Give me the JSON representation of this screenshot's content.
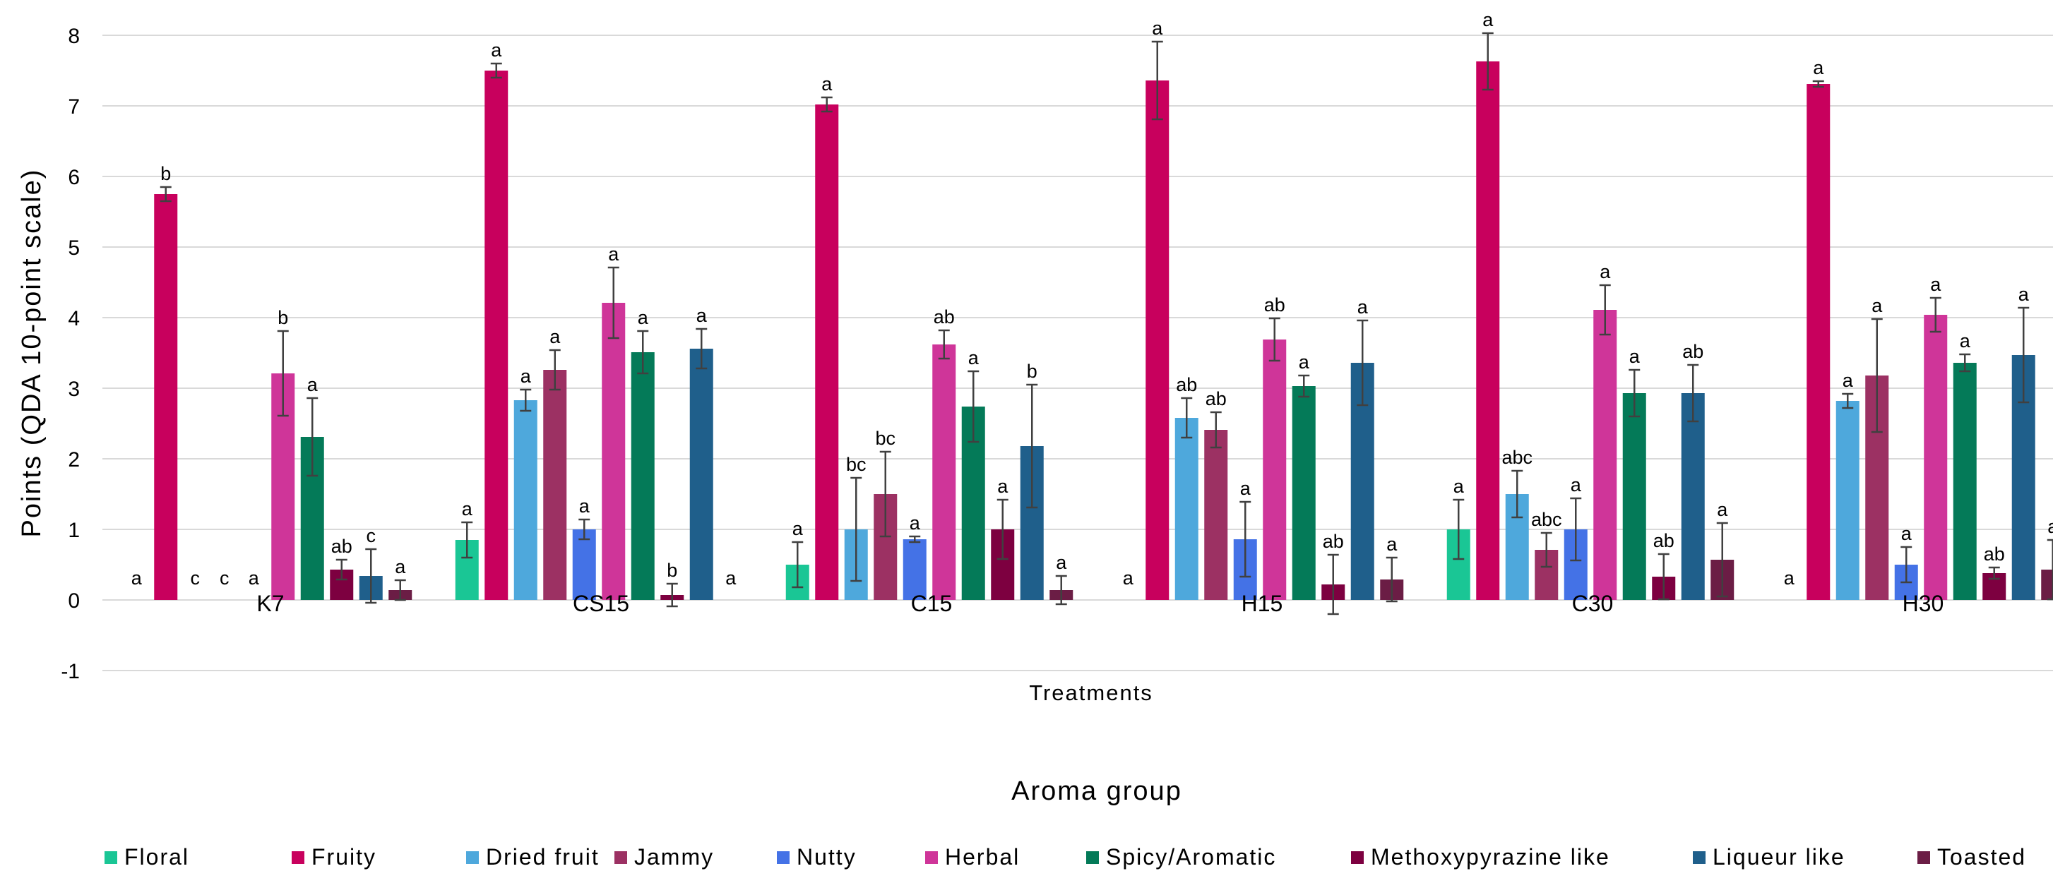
{
  "chart_data": {
    "type": "bar",
    "xlabel": "Treatments",
    "ylabel": "Points (QDA 10-point scale)",
    "legend_title": "Aroma group",
    "legend_position": "bottom",
    "ylim": [
      -1,
      8
    ],
    "yticks": [
      "-1",
      "0",
      "1",
      "2",
      "3",
      "4",
      "5",
      "6",
      "7",
      "8"
    ],
    "grid": true,
    "categories": [
      "K7",
      "CS15",
      "C15",
      "H15",
      "C30",
      "H30"
    ],
    "series": [
      {
        "name": "Floral",
        "color": "#1ac695",
        "values": [
          0,
          0.85,
          0.5,
          0,
          1.0,
          0
        ],
        "errors": [
          0,
          0.25,
          0.32,
          0,
          0.42,
          0
        ],
        "letters": [
          "a",
          "a",
          "a",
          "a",
          "a",
          "a"
        ]
      },
      {
        "name": "Fruity",
        "color": "#c8005d",
        "values": [
          5.75,
          7.5,
          7.02,
          7.36,
          7.63,
          7.31
        ],
        "errors": [
          0.1,
          0.1,
          0.1,
          0.55,
          0.4,
          0.04
        ],
        "letters": [
          "b",
          "a",
          "a",
          "a",
          "a",
          "a"
        ]
      },
      {
        "name": "Dried fruit",
        "color": "#4ea8dc",
        "values": [
          0,
          2.83,
          1.0,
          2.58,
          1.5,
          2.82
        ],
        "errors": [
          0,
          0.15,
          0.73,
          0.28,
          0.33,
          0.1
        ],
        "letters": [
          "c",
          "a",
          "bc",
          "ab",
          "abc",
          "a"
        ]
      },
      {
        "name": "Jammy",
        "color": "#9c3163",
        "values": [
          0,
          3.26,
          1.5,
          2.41,
          0.71,
          3.18
        ],
        "errors": [
          0,
          0.28,
          0.6,
          0.25,
          0.24,
          0.8
        ],
        "letters": [
          "c",
          "a",
          "bc",
          "ab",
          "abc",
          "a"
        ]
      },
      {
        "name": "Nutty",
        "color": "#4472e6",
        "values": [
          0,
          1.0,
          0.86,
          0.86,
          1.0,
          0.5
        ],
        "errors": [
          0,
          0.14,
          0.04,
          0.53,
          0.44,
          0.25
        ],
        "letters": [
          "a",
          "a",
          "a",
          "a",
          "a",
          "a"
        ]
      },
      {
        "name": "Herbal",
        "color": "#cf3599",
        "values": [
          3.21,
          4.21,
          3.62,
          3.69,
          4.11,
          4.04
        ],
        "errors": [
          0.6,
          0.5,
          0.2,
          0.3,
          0.35,
          0.24
        ],
        "letters": [
          "b",
          "a",
          "ab",
          "ab",
          "a",
          "a"
        ]
      },
      {
        "name": "Spicy/Aromatic",
        "color": "#047a58",
        "values": [
          2.31,
          3.51,
          2.74,
          3.03,
          2.93,
          3.36
        ],
        "errors": [
          0.55,
          0.3,
          0.5,
          0.15,
          0.33,
          0.12
        ],
        "letters": [
          "a",
          "a",
          "a",
          "a",
          "a",
          "a"
        ]
      },
      {
        "name": "Methoxypyrazine like",
        "color": "#7d0040",
        "values": [
          0.43,
          0.07,
          1.0,
          0.22,
          0.33,
          0.38
        ],
        "errors": [
          0.14,
          0.16,
          0.42,
          0.42,
          0.32,
          0.08
        ],
        "letters": [
          "ab",
          "b",
          "a",
          "ab",
          "ab",
          "ab"
        ]
      },
      {
        "name": "Liqueur like",
        "color": "#1f5f8b",
        "values": [
          0.34,
          3.56,
          2.18,
          3.36,
          2.93,
          3.47
        ],
        "errors": [
          0.38,
          0.28,
          0.87,
          0.6,
          0.4,
          0.67
        ],
        "letters": [
          "c",
          "a",
          "b",
          "a",
          "ab",
          "a"
        ]
      },
      {
        "name": "Toasted",
        "color": "#6b1d45",
        "values": [
          0.14,
          0,
          0.14,
          0.29,
          0.57,
          0.43
        ],
        "errors": [
          0.14,
          0,
          0.2,
          0.31,
          0.52,
          0.42
        ],
        "letters": [
          "a",
          "a",
          "a",
          "a",
          "a",
          "a"
        ]
      }
    ]
  }
}
